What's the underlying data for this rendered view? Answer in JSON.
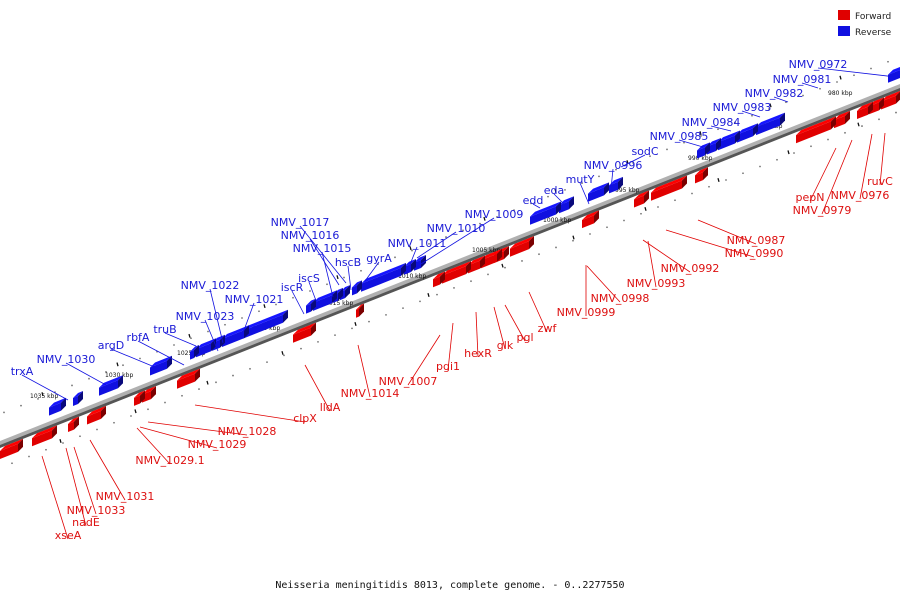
{
  "caption": "Neisseria meningitidis 8013, complete genome. - 0..2277550",
  "legend": [
    {
      "label": "Forward",
      "color": "#e00000"
    },
    {
      "label": "Reverse",
      "color": "#1010e0"
    }
  ],
  "colors": {
    "forward": "#e00000",
    "reverse": "#1010e0",
    "backbone": "#888888"
  },
  "ticks": [
    "980 kbp",
    "985 kbp",
    "990 kbp",
    "995 kbp",
    "1000 kbp",
    "1005 kbp",
    "1010 kbp",
    "1015 kbp",
    "1020 kbp",
    "1025 kbp",
    "1030 kbp",
    "1035 kbp"
  ],
  "reverse_genes": [
    "NMV_0972",
    "NMV_0981",
    "NMV_0982",
    "NMV_0983",
    "NMV_0984",
    "NMV_0985",
    "sodC",
    "NMV_0996",
    "mutY",
    "eda",
    "edd",
    "NMV_1009",
    "NMV_1010",
    "NMV_1011",
    "gyrA",
    "hscB",
    "NMV_1015",
    "NMV_1016",
    "NMV_1017",
    "iscS",
    "iscR",
    "NMV_1021",
    "NMV_1022",
    "NMV_1023",
    "truB",
    "rbfA",
    "argD",
    "NMV_1030",
    "trxA"
  ],
  "forward_genes": [
    "ruvC",
    "NMV_0976",
    "NMV_0979",
    "pepN",
    "NMV_0987",
    "NMV_0990",
    "NMV_0992",
    "NMV_0993",
    "NMV_0998",
    "NMV_0999",
    "zwf",
    "pgl",
    "glk",
    "hexR",
    "pgi1",
    "NMV_1007",
    "NMV_1014",
    "lldA",
    "clpX",
    "NMV_1028",
    "NMV_1029",
    "NMV_1029.1",
    "NMV_1031",
    "NMV_1033",
    "nadE",
    "xseA"
  ]
}
